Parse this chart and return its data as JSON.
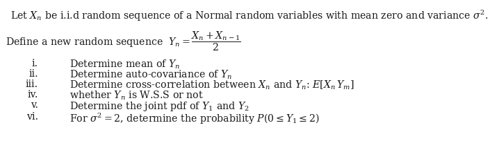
{
  "background_color": "#ffffff",
  "figsize": [
    7.18,
    2.05
  ],
  "dpi": 100,
  "font_family": "DejaVu Serif",
  "mathtext_fontset": "dejavuserif",
  "text_color": "#1a1a1a",
  "fontsize": 10.2,
  "line1": "Let $X_n$ be i.i.d random sequence of a Normal random variables with mean zero and variance $\\sigma^2$.",
  "line2_prefix": "Define a new random sequence $Y_n = $",
  "fraction_num": "$X_n + X_{n-1}$",
  "fraction_den": "2",
  "items": [
    [
      "i.",
      "Determine mean of $Y_n$"
    ],
    [
      "ii.",
      "Determine auto-covariance of $Y_n$"
    ],
    [
      "iii.",
      "Determine cross-correlation between $X_n$ and $Y_n$: $E[X_n\\, Y_m]$"
    ],
    [
      "iv.",
      "whether $Y_n$ is W.S.S or not"
    ],
    [
      "v.",
      "Determine the joint pdf of $Y_1$ and $Y_2$"
    ],
    [
      "vi.",
      "For $\\sigma^2 = 2$, determine the probability $P(0 \\leq Y_1 \\leq 2)$"
    ]
  ]
}
